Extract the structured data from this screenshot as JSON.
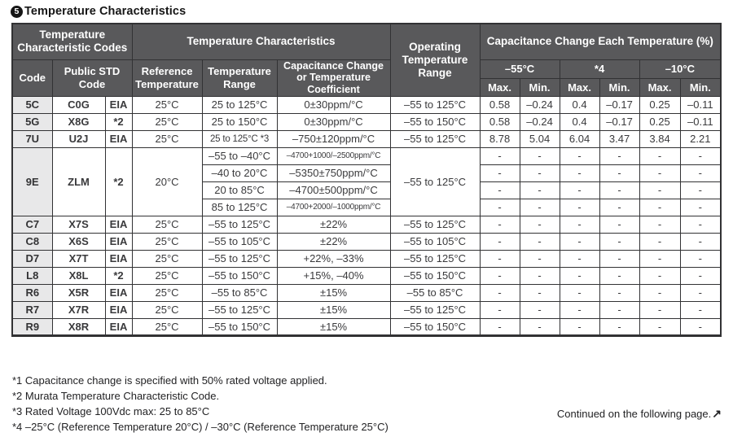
{
  "title": {
    "number": "5",
    "text": "Temperature Characteristics"
  },
  "colors": {
    "header_bg": "#59595b",
    "header_text": "#ffffff",
    "code_column_bg": "#e8e8e9",
    "border": "#323234",
    "body_text": "#3a3a3c"
  },
  "table": {
    "headers": {
      "group_codes": "Temperature Characteristic Codes",
      "group_chars": "Temperature Characteristics",
      "operating": "Operating Temperature Range",
      "group_cap_change": "Capacitance Change Each Temperature (%)",
      "code": "Code",
      "public_std": "Public STD Code",
      "reference": "Reference Temperature",
      "temp_range": "Temperature Range",
      "cap_change_coeff": "Capacitance Change or Temperature Coefficient",
      "col_minus55": "–55°C",
      "col_star4": "*4",
      "col_minus10": "–10°C",
      "max": "Max.",
      "min": "Min."
    },
    "rows": [
      [
        {
          "t": "5C",
          "cls": "code"
        },
        {
          "t": "C0G",
          "cls": "b"
        },
        {
          "t": "EIA",
          "cls": "b"
        },
        {
          "t": "25°C"
        },
        {
          "t": "25 to 125°C"
        },
        {
          "t": "0±30ppm/°C"
        },
        {
          "t": "–55 to 125°C"
        },
        {
          "t": "0.58"
        },
        {
          "t": "–0.24"
        },
        {
          "t": "0.4"
        },
        {
          "t": "–0.17"
        },
        {
          "t": "0.25"
        },
        {
          "t": "–0.11"
        }
      ],
      [
        {
          "t": "5G",
          "cls": "code"
        },
        {
          "t": "X8G",
          "cls": "b"
        },
        {
          "t": "*2",
          "cls": "b"
        },
        {
          "t": "25°C"
        },
        {
          "t": "25 to 150°C"
        },
        {
          "t": "0±30ppm/°C"
        },
        {
          "t": "–55 to 150°C"
        },
        {
          "t": "0.58"
        },
        {
          "t": "–0.24"
        },
        {
          "t": "0.4"
        },
        {
          "t": "–0.17"
        },
        {
          "t": "0.25"
        },
        {
          "t": "–0.11"
        }
      ],
      [
        {
          "t": "7U",
          "cls": "code"
        },
        {
          "t": "U2J",
          "cls": "b"
        },
        {
          "t": "EIA",
          "cls": "b"
        },
        {
          "t": "25°C"
        },
        {
          "t": "25 to 125°C *3",
          "cls": "fit"
        },
        {
          "t": "–750±120ppm/°C"
        },
        {
          "t": "–55 to 125°C"
        },
        {
          "t": "8.78"
        },
        {
          "t": "5.04"
        },
        {
          "t": "6.04"
        },
        {
          "t": "3.47"
        },
        {
          "t": "3.84"
        },
        {
          "t": "2.21"
        }
      ],
      [
        {
          "t": "9E",
          "cls": "code",
          "rs": 4
        },
        {
          "t": "ZLM",
          "cls": "b",
          "rs": 4
        },
        {
          "t": "*2",
          "cls": "b",
          "rs": 4
        },
        {
          "t": "20°C",
          "rs": 4
        },
        {
          "t": "–55 to –40°C"
        },
        {
          "t": "–4700+1000/–2500ppm/°C",
          "cls": "small"
        },
        {
          "t": "–55 to 125°C",
          "rs": 4
        },
        {
          "t": "-"
        },
        {
          "t": "-"
        },
        {
          "t": "-"
        },
        {
          "t": "-"
        },
        {
          "t": "-"
        },
        {
          "t": "-"
        }
      ],
      [
        {
          "t": "–40 to 20°C"
        },
        {
          "t": "–5350±750ppm/°C"
        },
        {
          "t": "-"
        },
        {
          "t": "-"
        },
        {
          "t": "-"
        },
        {
          "t": "-"
        },
        {
          "t": "-"
        },
        {
          "t": "-"
        }
      ],
      [
        {
          "t": "20 to 85°C"
        },
        {
          "t": "–4700±500ppm/°C"
        },
        {
          "t": "-"
        },
        {
          "t": "-"
        },
        {
          "t": "-"
        },
        {
          "t": "-"
        },
        {
          "t": "-"
        },
        {
          "t": "-"
        }
      ],
      [
        {
          "t": "85 to 125°C"
        },
        {
          "t": "–4700+2000/–1000ppm/°C",
          "cls": "small"
        },
        {
          "t": "-"
        },
        {
          "t": "-"
        },
        {
          "t": "-"
        },
        {
          "t": "-"
        },
        {
          "t": "-"
        },
        {
          "t": "-"
        }
      ],
      [
        {
          "t": "C7",
          "cls": "code"
        },
        {
          "t": "X7S",
          "cls": "b"
        },
        {
          "t": "EIA",
          "cls": "b"
        },
        {
          "t": "25°C"
        },
        {
          "t": "–55 to 125°C"
        },
        {
          "t": "±22%"
        },
        {
          "t": "–55 to 125°C"
        },
        {
          "t": "-"
        },
        {
          "t": "-"
        },
        {
          "t": "-"
        },
        {
          "t": "-"
        },
        {
          "t": "-"
        },
        {
          "t": "-"
        }
      ],
      [
        {
          "t": "C8",
          "cls": "code"
        },
        {
          "t": "X6S",
          "cls": "b"
        },
        {
          "t": "EIA",
          "cls": "b"
        },
        {
          "t": "25°C"
        },
        {
          "t": "–55 to 105°C"
        },
        {
          "t": "±22%"
        },
        {
          "t": "–55 to 105°C"
        },
        {
          "t": "-"
        },
        {
          "t": "-"
        },
        {
          "t": "-"
        },
        {
          "t": "-"
        },
        {
          "t": "-"
        },
        {
          "t": "-"
        }
      ],
      [
        {
          "t": "D7",
          "cls": "code"
        },
        {
          "t": "X7T",
          "cls": "b"
        },
        {
          "t": "EIA",
          "cls": "b"
        },
        {
          "t": "25°C"
        },
        {
          "t": "–55 to 125°C"
        },
        {
          "t": "+22%, –33%"
        },
        {
          "t": "–55 to 125°C"
        },
        {
          "t": "-"
        },
        {
          "t": "-"
        },
        {
          "t": "-"
        },
        {
          "t": "-"
        },
        {
          "t": "-"
        },
        {
          "t": "-"
        }
      ],
      [
        {
          "t": "L8",
          "cls": "code"
        },
        {
          "t": "X8L",
          "cls": "b"
        },
        {
          "t": "*2",
          "cls": "b"
        },
        {
          "t": "25°C"
        },
        {
          "t": "–55 to 150°C"
        },
        {
          "t": "+15%, –40%"
        },
        {
          "t": "–55 to 150°C"
        },
        {
          "t": "-"
        },
        {
          "t": "-"
        },
        {
          "t": "-"
        },
        {
          "t": "-"
        },
        {
          "t": "-"
        },
        {
          "t": "-"
        }
      ],
      [
        {
          "t": "R6",
          "cls": "code"
        },
        {
          "t": "X5R",
          "cls": "b"
        },
        {
          "t": "EIA",
          "cls": "b"
        },
        {
          "t": "25°C"
        },
        {
          "t": "–55 to 85°C"
        },
        {
          "t": "±15%"
        },
        {
          "t": "–55 to 85°C"
        },
        {
          "t": "-"
        },
        {
          "t": "-"
        },
        {
          "t": "-"
        },
        {
          "t": "-"
        },
        {
          "t": "-"
        },
        {
          "t": "-"
        }
      ],
      [
        {
          "t": "R7",
          "cls": "code"
        },
        {
          "t": "X7R",
          "cls": "b"
        },
        {
          "t": "EIA",
          "cls": "b"
        },
        {
          "t": "25°C"
        },
        {
          "t": "–55 to 125°C"
        },
        {
          "t": "±15%"
        },
        {
          "t": "–55 to 125°C"
        },
        {
          "t": "-"
        },
        {
          "t": "-"
        },
        {
          "t": "-"
        },
        {
          "t": "-"
        },
        {
          "t": "-"
        },
        {
          "t": "-"
        }
      ],
      [
        {
          "t": "R9",
          "cls": "code"
        },
        {
          "t": "X8R",
          "cls": "b"
        },
        {
          "t": "EIA",
          "cls": "b"
        },
        {
          "t": "25°C"
        },
        {
          "t": "–55 to 150°C"
        },
        {
          "t": "±15%"
        },
        {
          "t": "–55 to 150°C"
        },
        {
          "t": "-"
        },
        {
          "t": "-"
        },
        {
          "t": "-"
        },
        {
          "t": "-"
        },
        {
          "t": "-"
        },
        {
          "t": "-"
        }
      ]
    ]
  },
  "footnotes": [
    "*1 Capacitance change is specified with 50% rated voltage applied.",
    "*2 Murata Temperature Characteristic Code.",
    "*3 Rated Voltage 100Vdc max: 25 to 85°C",
    "*4 –25°C (Reference Temperature 20°C) / –30°C (Reference Temperature 25°C)"
  ],
  "continued": {
    "text": "Continued on the following page.",
    "arrow": "↗"
  }
}
